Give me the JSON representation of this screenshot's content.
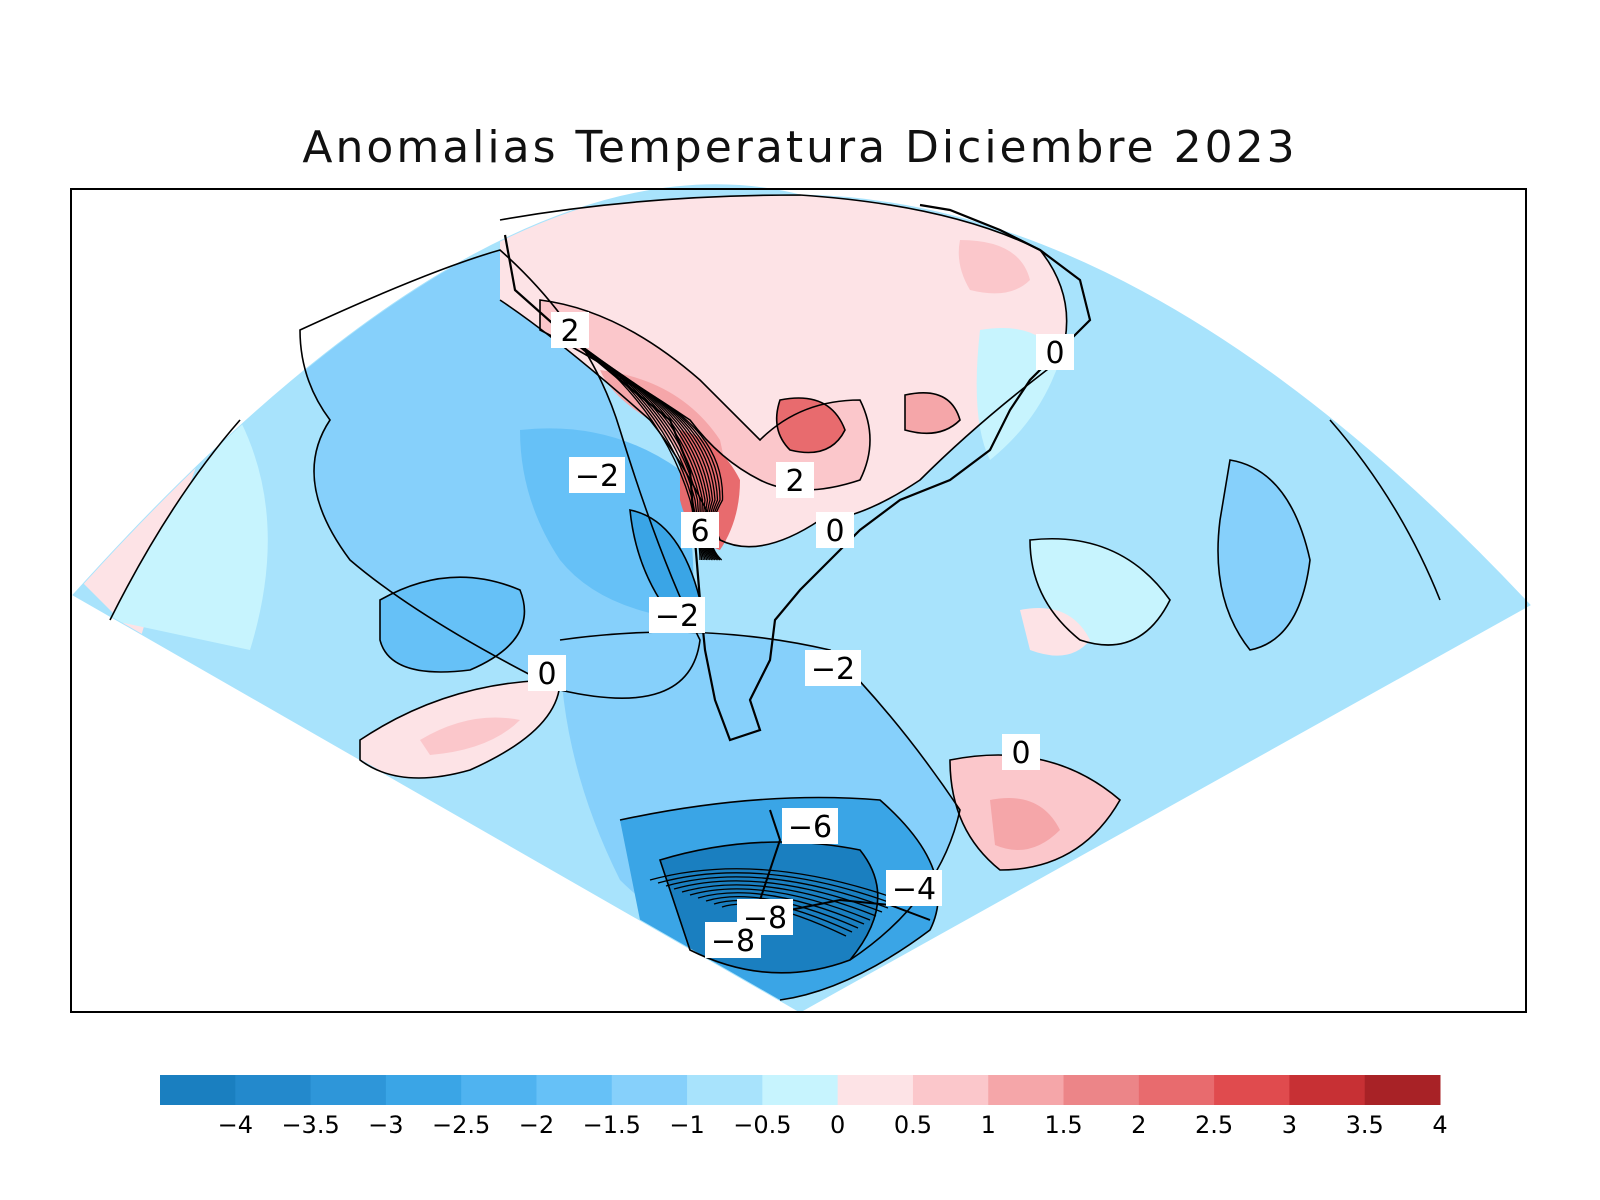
{
  "title": "Anomalias Temperatura Diciembre 2023",
  "colorbar": {
    "colors": [
      "#1a7fc0",
      "#2389cc",
      "#2e96d9",
      "#3aa5e6",
      "#4fb3f0",
      "#66c1f7",
      "#86d0fb",
      "#a8e3fc",
      "#c7f4fe",
      "#fde3e6",
      "#fbc7cb",
      "#f5a6a9",
      "#ec8588",
      "#e86b6e",
      "#e04b4e",
      "#c73034",
      "#a82226"
    ],
    "ticks": [
      "−4",
      "−3.5",
      "−3",
      "−2.5",
      "−2",
      "−1.5",
      "−1",
      "−0.5",
      "0",
      "0.5",
      "1",
      "1.5",
      "2",
      "2.5",
      "3",
      "3.5",
      "4"
    ]
  },
  "contour_labels": [
    {
      "text": "2"
    },
    {
      "text": "0"
    },
    {
      "text": "−2"
    },
    {
      "text": "2"
    },
    {
      "text": "0"
    },
    {
      "text": "6"
    },
    {
      "text": "−2"
    },
    {
      "text": "0"
    },
    {
      "text": "−2"
    },
    {
      "text": "0"
    },
    {
      "text": "−6"
    },
    {
      "text": "−4"
    },
    {
      "text": "−8"
    },
    {
      "text": "−8"
    }
  ],
  "colors": {
    "base": "#a8e3fc",
    "cold1": "#86d0fb",
    "cold2": "#66c1f7",
    "cold3": "#3aa5e6",
    "cold4": "#1a7fc0",
    "warm1": "#fde3e6",
    "warm2": "#fbc7cb",
    "warm3": "#f5a6a9",
    "warm4": "#e86b6e",
    "warm5": "#c73034",
    "warm6": "#a82226"
  }
}
